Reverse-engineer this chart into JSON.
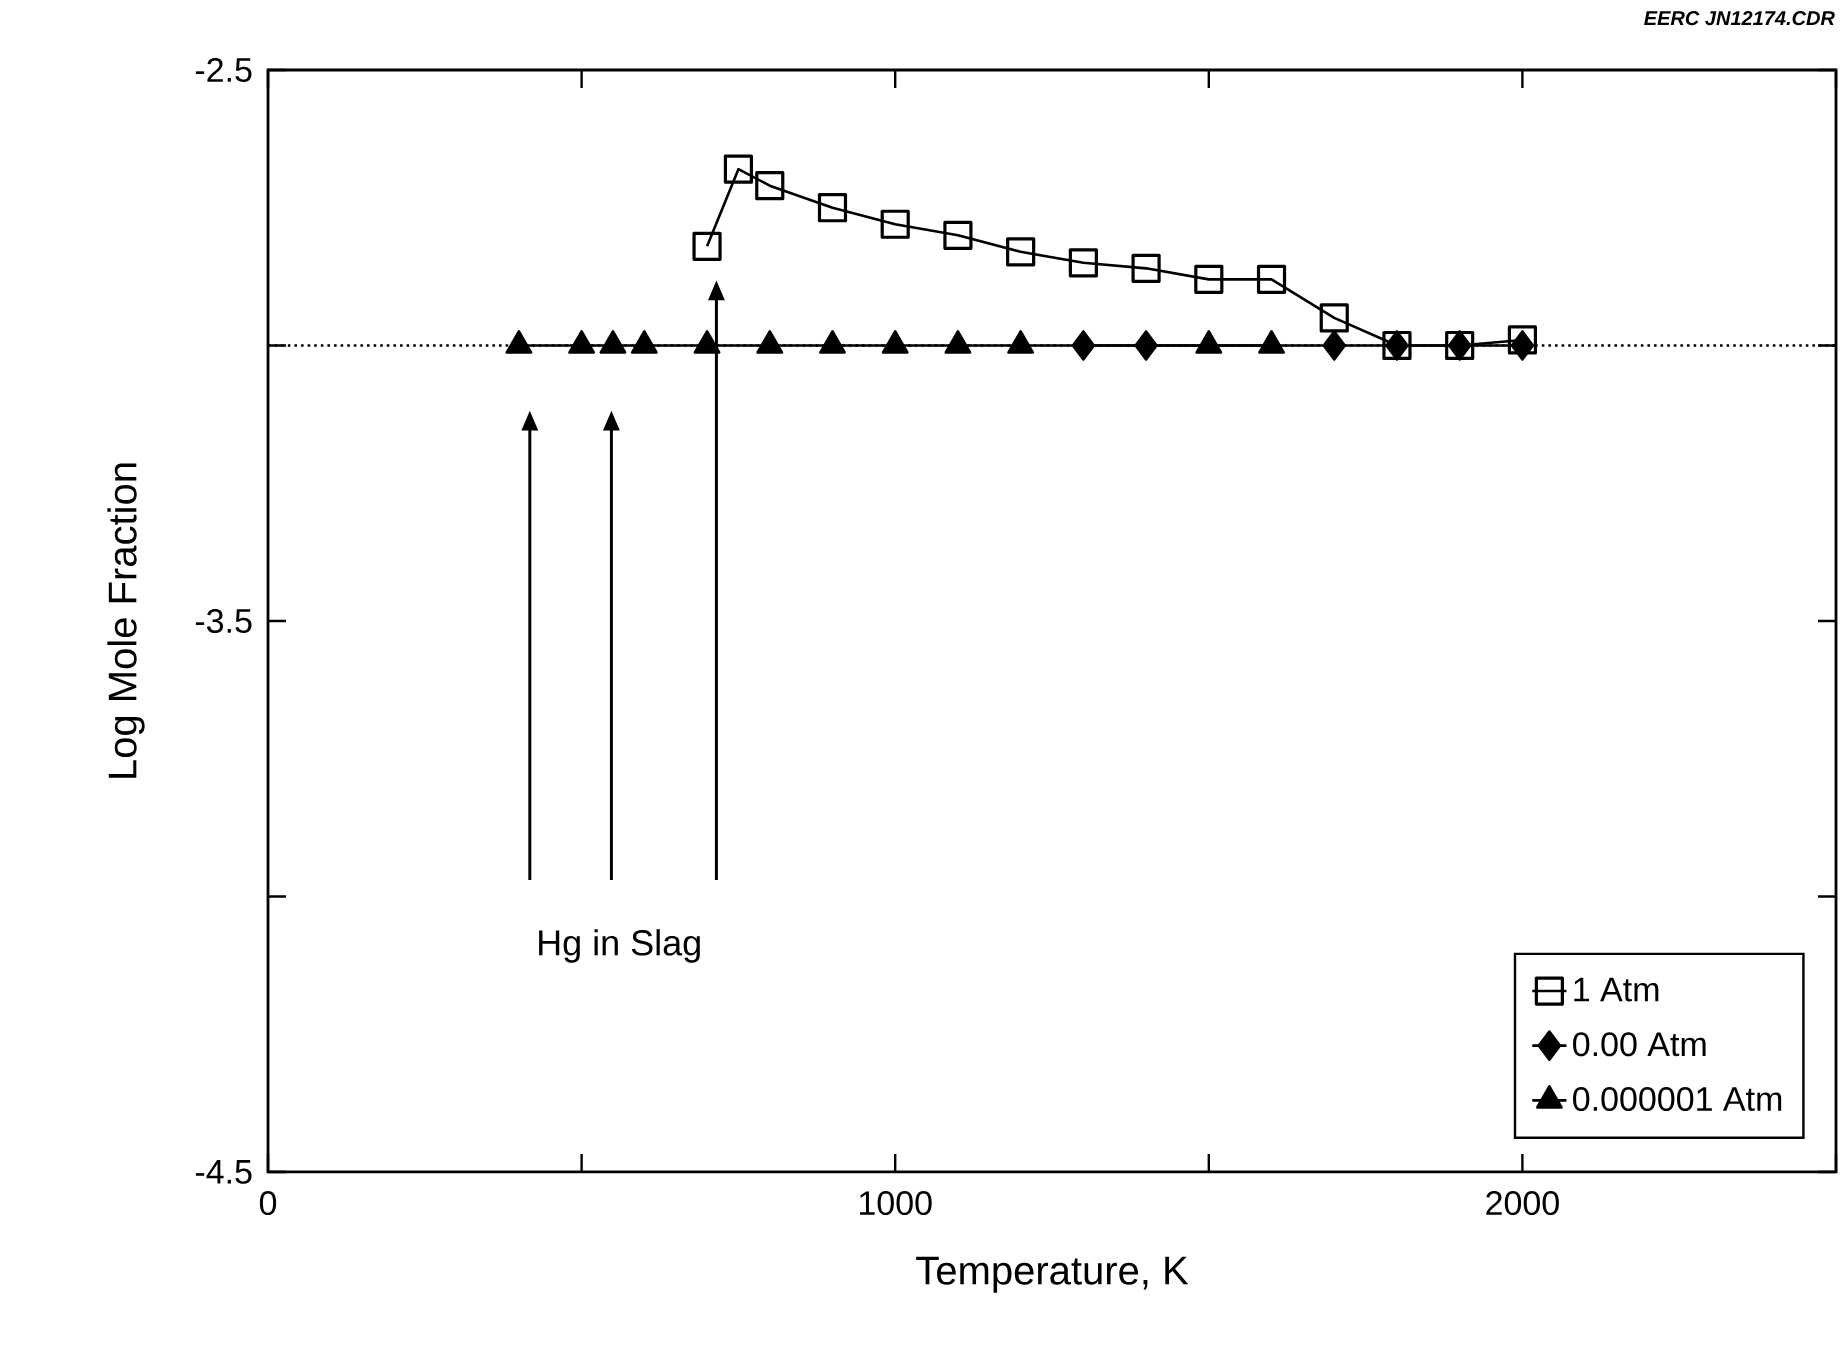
{
  "chart_data": {
    "type": "line",
    "xlabel": "Temperature, K",
    "ylabel": "Log Mole Fraction",
    "xlim": [
      0,
      2500
    ],
    "ylim": [
      -4.5,
      -2.5
    ],
    "xticks": [
      0,
      {
        "value": 500,
        "label": null
      },
      1000,
      {
        "value": 1500,
        "label": null
      },
      2000,
      {
        "value": 2500,
        "label": null
      }
    ],
    "yticks": [
      -2.5,
      {
        "value": -3,
        "label": null
      },
      -3.5,
      {
        "value": -4,
        "label": null
      },
      -4.5
    ],
    "series": [
      {
        "name": "1 Atm",
        "color": "#000000",
        "marker": "square",
        "x": [
          700,
          750,
          800,
          900,
          1000,
          1100,
          1200,
          1300,
          1400,
          1500,
          1600,
          1700,
          1800,
          1900,
          2000
        ],
        "values": [
          -2.82,
          -2.68,
          -2.71,
          -2.75,
          -2.78,
          -2.8,
          -2.83,
          -2.85,
          -2.86,
          -2.88,
          -2.88,
          -2.95,
          -3.0,
          -3.0,
          -2.99
        ]
      },
      {
        "name": "0.00 Atm",
        "color": "#000000",
        "marker": "diamond",
        "x": [
          1300,
          1400,
          1700,
          1800,
          1900,
          2000
        ],
        "values": [
          -3.0,
          -3.0,
          -3.0,
          -3.0,
          -3.0,
          -3.0
        ]
      },
      {
        "name": "0.000001 Atm",
        "color": "#000000",
        "marker": "triangle",
        "x": [
          400,
          500,
          550,
          600,
          700,
          800,
          900,
          1000,
          1100,
          1200,
          1500,
          1600
        ],
        "values": [
          -3.0,
          -3.0,
          -3.0,
          -3.0,
          -3.0,
          -3.0,
          -3.0,
          -3.0,
          -3.0,
          -3.0,
          -3.0,
          -3.0
        ]
      }
    ],
    "ref_lines": [
      {
        "axis": "y",
        "value": -3,
        "line_style": "dotted",
        "color": "#000000"
      }
    ],
    "annotations": [
      "Hg in Slag",
      "EERC JN12174.CDR"
    ],
    "legend": "bottom right",
    "line_style": "solid",
    "grid": false
  }
}
